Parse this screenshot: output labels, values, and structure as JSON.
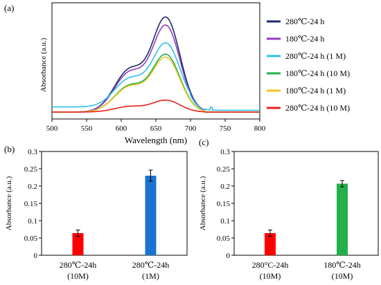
{
  "colors": {
    "c280_24h": "#1b2a6b",
    "c180_24h": "#8e3cbf",
    "c280_1M": "#2ec0ea",
    "c180_10M": "#1db34a",
    "c180_1M": "#f2c21b",
    "c280_10M": "#e8201c",
    "bar_red": "#ff0000",
    "bar_blue": "#1a73d0",
    "bar_green": "#22b04b"
  },
  "chart_data": [
    {
      "panel_label": "(a)",
      "type": "line",
      "xlabel": "Wavelength  (nm)",
      "ylabel": "Absorbance (a.u.)",
      "xlim": [
        500,
        800
      ],
      "xticks": [
        "500",
        "550",
        "600",
        "650",
        "700",
        "750",
        "800"
      ],
      "y_ticks_shown": false,
      "legend_placement": "right",
      "series": [
        {
          "name": "280℃-24 h",
          "color_key": "c280_24h",
          "peak": 0.95,
          "shoulder": 0.45,
          "baseline": 0.0
        },
        {
          "name": "180℃-24 h",
          "color_key": "c180_24h",
          "peak": 0.87,
          "shoulder": 0.42,
          "baseline": 0.0
        },
        {
          "name": "280℃-24 h (1 M)",
          "color_key": "c280_1M",
          "peak": 0.64,
          "shoulder": 0.3,
          "baseline": 0.05
        },
        {
          "name": "180℃-24 h (10 M)",
          "color_key": "c180_10M",
          "peak": 0.58,
          "shoulder": 0.28,
          "baseline": 0.0
        },
        {
          "name": "180℃-24 h (1 M)",
          "color_key": "c180_1M",
          "peak": 0.55,
          "shoulder": 0.27,
          "baseline": 0.0
        },
        {
          "name": "280℃-24 h (10 M)",
          "color_key": "c280_10M",
          "peak": 0.12,
          "shoulder": 0.06,
          "baseline": 0.0
        }
      ]
    },
    {
      "panel_label": "(b)",
      "type": "bar",
      "ylabel": "Absorbance (a.u.)",
      "ylim": [
        0,
        0.3
      ],
      "yticks": [
        "0",
        "0.05",
        "0.1",
        "0.15",
        "0.2",
        "0.25",
        "0.3"
      ],
      "categories": [
        {
          "line1": "280℃-24h",
          "line2": "(10M)"
        },
        {
          "line1": "280℃-24h",
          "line2": "(1M)"
        }
      ],
      "values": [
        0.064,
        0.23
      ],
      "errors": [
        0.009,
        0.016
      ],
      "bar_color_keys": [
        "bar_red",
        "bar_blue"
      ]
    },
    {
      "panel_label": "(c)",
      "type": "bar",
      "ylabel": "Absorbance (a.u.)",
      "ylim": [
        0,
        0.3
      ],
      "yticks": [
        "0",
        "0.05",
        "0.1",
        "0.15",
        "0.2",
        "0.25",
        "0.3"
      ],
      "categories": [
        {
          "line1": "280°C-24h",
          "line2": "(10M)"
        },
        {
          "line1": "180℃-24h",
          "line2": "(10M)"
        }
      ],
      "values": [
        0.064,
        0.207
      ],
      "errors": [
        0.009,
        0.009
      ],
      "bar_color_keys": [
        "bar_red",
        "bar_green"
      ]
    }
  ]
}
